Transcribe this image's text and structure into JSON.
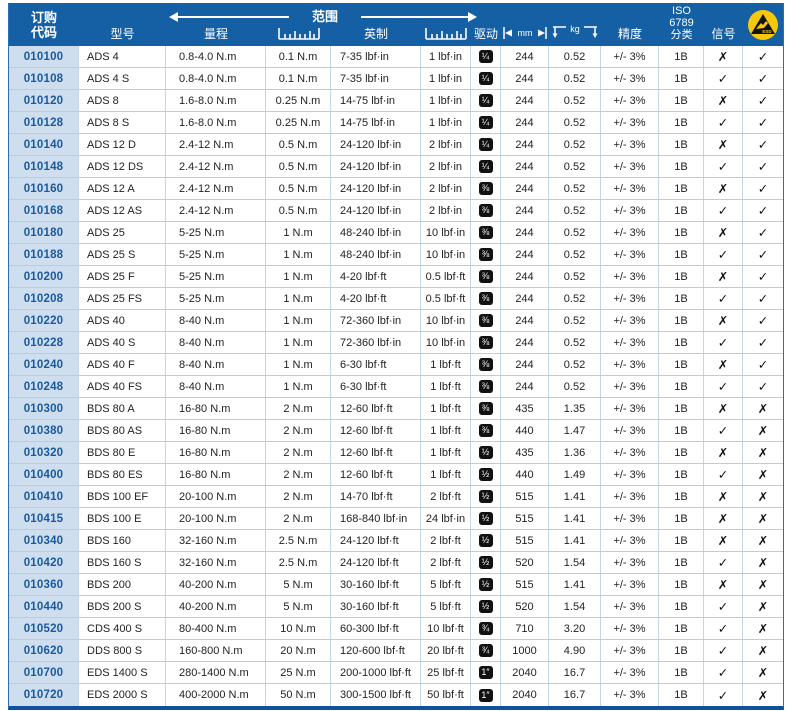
{
  "colors": {
    "header_bg": "#155fa5",
    "code_column_bg": "#cfdeef",
    "code_text": "#19599f",
    "grid_line": "#b7cde6",
    "bottom_border": "#11509b",
    "esd_yellow": "#f5c80a",
    "drive_chip_bg": "#111111",
    "body_text": "#222222"
  },
  "header": {
    "order_code_line1": "订购",
    "order_code_line2": "代码",
    "model": "型号",
    "range_group": "范围",
    "metric_range": "量程",
    "imperial": "英制",
    "drive": "驱动",
    "length_unit": "mm",
    "weight_unit": "kg",
    "accuracy": "精度",
    "iso_line1": "ISO 6789",
    "iso_line2": "分类",
    "signal": "信号",
    "esd_label": "ESD"
  },
  "marks": {
    "yes": "✓",
    "no": "✗"
  },
  "rows": [
    {
      "code": "010100",
      "model": "ADS 4",
      "range_metric": "0.8-4.0 N.m",
      "grad_metric": "0.1 N.m",
      "range_imperial": "7-35 lbf·in",
      "grad_imperial": "1 lbf·in",
      "drive": "¼",
      "length_mm": "244",
      "weight_kg": "0.52",
      "accuracy": "+/- 3%",
      "iso_class": "1B",
      "signal": "✗",
      "esd": "✓"
    },
    {
      "code": "010108",
      "model": "ADS 4 S",
      "range_metric": "0.8-4.0 N.m",
      "grad_metric": "0.1 N.m",
      "range_imperial": "7-35 lbf·in",
      "grad_imperial": "1 lbf·in",
      "drive": "¼",
      "length_mm": "244",
      "weight_kg": "0.52",
      "accuracy": "+/- 3%",
      "iso_class": "1B",
      "signal": "✓",
      "esd": "✓"
    },
    {
      "code": "010120",
      "model": "ADS 8",
      "range_metric": "1.6-8.0 N.m",
      "grad_metric": "0.25 N.m",
      "range_imperial": "14-75 lbf·in",
      "grad_imperial": "1 lbf·in",
      "drive": "¼",
      "length_mm": "244",
      "weight_kg": "0.52",
      "accuracy": "+/- 3%",
      "iso_class": "1B",
      "signal": "✗",
      "esd": "✓"
    },
    {
      "code": "010128",
      "model": "ADS 8 S",
      "range_metric": "1.6-8.0 N.m",
      "grad_metric": "0.25 N.m",
      "range_imperial": "14-75 lbf·in",
      "grad_imperial": "1 lbf·in",
      "drive": "¼",
      "length_mm": "244",
      "weight_kg": "0.52",
      "accuracy": "+/- 3%",
      "iso_class": "1B",
      "signal": "✓",
      "esd": "✓"
    },
    {
      "code": "010140",
      "model": "ADS 12 D",
      "range_metric": "2.4-12 N.m",
      "grad_metric": "0.5 N.m",
      "range_imperial": "24-120 lbf·in",
      "grad_imperial": "2 lbf·in",
      "drive": "¼",
      "length_mm": "244",
      "weight_kg": "0.52",
      "accuracy": "+/- 3%",
      "iso_class": "1B",
      "signal": "✗",
      "esd": "✓"
    },
    {
      "code": "010148",
      "model": "ADS 12 DS",
      "range_metric": "2.4-12 N.m",
      "grad_metric": "0.5 N.m",
      "range_imperial": "24-120 lbf·in",
      "grad_imperial": "2 lbf·in",
      "drive": "¼",
      "length_mm": "244",
      "weight_kg": "0.52",
      "accuracy": "+/- 3%",
      "iso_class": "1B",
      "signal": "✓",
      "esd": "✓"
    },
    {
      "code": "010160",
      "model": "ADS 12 A",
      "range_metric": "2.4-12 N.m",
      "grad_metric": "0.5 N.m",
      "range_imperial": "24-120 lbf·in",
      "grad_imperial": "2 lbf·in",
      "drive": "⅜",
      "length_mm": "244",
      "weight_kg": "0.52",
      "accuracy": "+/- 3%",
      "iso_class": "1B",
      "signal": "✗",
      "esd": "✓"
    },
    {
      "code": "010168",
      "model": "ADS 12 AS",
      "range_metric": "2.4-12 N.m",
      "grad_metric": "0.5 N.m",
      "range_imperial": "24-120 lbf·in",
      "grad_imperial": "2 lbf·in",
      "drive": "⅜",
      "length_mm": "244",
      "weight_kg": "0.52",
      "accuracy": "+/- 3%",
      "iso_class": "1B",
      "signal": "✓",
      "esd": "✓"
    },
    {
      "code": "010180",
      "model": "ADS 25",
      "range_metric": "5-25 N.m",
      "grad_metric": "1 N.m",
      "range_imperial": "48-240 lbf·in",
      "grad_imperial": "10 lbf·in",
      "drive": "⅜",
      "length_mm": "244",
      "weight_kg": "0.52",
      "accuracy": "+/- 3%",
      "iso_class": "1B",
      "signal": "✗",
      "esd": "✓"
    },
    {
      "code": "010188",
      "model": "ADS 25 S",
      "range_metric": "5-25 N.m",
      "grad_metric": "1 N.m",
      "range_imperial": "48-240 lbf·in",
      "grad_imperial": "10 lbf·in",
      "drive": "⅜",
      "length_mm": "244",
      "weight_kg": "0.52",
      "accuracy": "+/- 3%",
      "iso_class": "1B",
      "signal": "✓",
      "esd": "✓"
    },
    {
      "code": "010200",
      "model": "ADS 25 F",
      "range_metric": "5-25 N.m",
      "grad_metric": "1 N.m",
      "range_imperial": "4-20 lbf·ft",
      "grad_imperial": "0.5 lbf·ft",
      "drive": "⅜",
      "length_mm": "244",
      "weight_kg": "0.52",
      "accuracy": "+/- 3%",
      "iso_class": "1B",
      "signal": "✗",
      "esd": "✓"
    },
    {
      "code": "010208",
      "model": "ADS 25 FS",
      "range_metric": "5-25 N.m",
      "grad_metric": "1 N.m",
      "range_imperial": "4-20 lbf·ft",
      "grad_imperial": "0.5 lbf·ft",
      "drive": "⅜",
      "length_mm": "244",
      "weight_kg": "0.52",
      "accuracy": "+/- 3%",
      "iso_class": "1B",
      "signal": "✓",
      "esd": "✓"
    },
    {
      "code": "010220",
      "model": "ADS 40",
      "range_metric": "8-40 N.m",
      "grad_metric": "1 N.m",
      "range_imperial": "72-360 lbf·in",
      "grad_imperial": "10 lbf·in",
      "drive": "⅜",
      "length_mm": "244",
      "weight_kg": "0.52",
      "accuracy": "+/- 3%",
      "iso_class": "1B",
      "signal": "✗",
      "esd": "✓"
    },
    {
      "code": "010228",
      "model": "ADS 40 S",
      "range_metric": "8-40 N.m",
      "grad_metric": "1 N.m",
      "range_imperial": "72-360 lbf·in",
      "grad_imperial": "10 lbf·in",
      "drive": "⅜",
      "length_mm": "244",
      "weight_kg": "0.52",
      "accuracy": "+/- 3%",
      "iso_class": "1B",
      "signal": "✓",
      "esd": "✓"
    },
    {
      "code": "010240",
      "model": "ADS 40 F",
      "range_metric": "8-40 N.m",
      "grad_metric": "1 N.m",
      "range_imperial": "6-30 lbf·ft",
      "grad_imperial": "1 lbf·ft",
      "drive": "⅜",
      "length_mm": "244",
      "weight_kg": "0.52",
      "accuracy": "+/- 3%",
      "iso_class": "1B",
      "signal": "✗",
      "esd": "✓"
    },
    {
      "code": "010248",
      "model": "ADS 40 FS",
      "range_metric": "8-40 N.m",
      "grad_metric": "1 N.m",
      "range_imperial": "6-30 lbf·ft",
      "grad_imperial": "1 lbf·ft",
      "drive": "⅜",
      "length_mm": "244",
      "weight_kg": "0.52",
      "accuracy": "+/- 3%",
      "iso_class": "1B",
      "signal": "✓",
      "esd": "✓"
    },
    {
      "code": "010300",
      "model": "BDS 80 A",
      "range_metric": "16-80 N.m",
      "grad_metric": "2 N.m",
      "range_imperial": "12-60 lbf·ft",
      "grad_imperial": "1 lbf·ft",
      "drive": "⅜",
      "length_mm": "435",
      "weight_kg": "1.35",
      "accuracy": "+/- 3%",
      "iso_class": "1B",
      "signal": "✗",
      "esd": "✗"
    },
    {
      "code": "010380",
      "model": "BDS 80 AS",
      "range_metric": "16-80 N.m",
      "grad_metric": "2 N.m",
      "range_imperial": "12-60 lbf·ft",
      "grad_imperial": "1 lbf·ft",
      "drive": "⅜",
      "length_mm": "440",
      "weight_kg": "1.47",
      "accuracy": "+/- 3%",
      "iso_class": "1B",
      "signal": "✓",
      "esd": "✗"
    },
    {
      "code": "010320",
      "model": "BDS 80 E",
      "range_metric": "16-80 N.m",
      "grad_metric": "2 N.m",
      "range_imperial": "12-60 lbf·ft",
      "grad_imperial": "1 lbf·ft",
      "drive": "½",
      "length_mm": "435",
      "weight_kg": "1.36",
      "accuracy": "+/- 3%",
      "iso_class": "1B",
      "signal": "✗",
      "esd": "✗"
    },
    {
      "code": "010400",
      "model": "BDS 80 ES",
      "range_metric": "16-80 N.m",
      "grad_metric": "2 N.m",
      "range_imperial": "12-60 lbf·ft",
      "grad_imperial": "1 lbf·ft",
      "drive": "½",
      "length_mm": "440",
      "weight_kg": "1.49",
      "accuracy": "+/- 3%",
      "iso_class": "1B",
      "signal": "✓",
      "esd": "✗"
    },
    {
      "code": "010410",
      "model": "BDS 100 EF",
      "range_metric": "20-100 N.m",
      "grad_metric": "2 N.m",
      "range_imperial": "14-70 lbf·ft",
      "grad_imperial": "2 lbf·ft",
      "drive": "½",
      "length_mm": "515",
      "weight_kg": "1.41",
      "accuracy": "+/- 3%",
      "iso_class": "1B",
      "signal": "✗",
      "esd": "✗"
    },
    {
      "code": "010415",
      "model": "BDS 100 E",
      "range_metric": "20-100 N.m",
      "grad_metric": "2 N.m",
      "range_imperial": "168-840 lbf·in",
      "grad_imperial": "24 lbf·in",
      "drive": "½",
      "length_mm": "515",
      "weight_kg": "1.41",
      "accuracy": "+/- 3%",
      "iso_class": "1B",
      "signal": "✗",
      "esd": "✗"
    },
    {
      "code": "010340",
      "model": "BDS 160",
      "range_metric": "32-160 N.m",
      "grad_metric": "2.5 N.m",
      "range_imperial": "24-120 lbf·ft",
      "grad_imperial": "2 lbf·ft",
      "drive": "½",
      "length_mm": "515",
      "weight_kg": "1.41",
      "accuracy": "+/- 3%",
      "iso_class": "1B",
      "signal": "✗",
      "esd": "✗"
    },
    {
      "code": "010420",
      "model": "BDS 160 S",
      "range_metric": "32-160 N.m",
      "grad_metric": "2.5 N.m",
      "range_imperial": "24-120 lbf·ft",
      "grad_imperial": "2 lbf·ft",
      "drive": "½",
      "length_mm": "520",
      "weight_kg": "1.54",
      "accuracy": "+/- 3%",
      "iso_class": "1B",
      "signal": "✓",
      "esd": "✗"
    },
    {
      "code": "010360",
      "model": "BDS 200",
      "range_metric": "40-200 N.m",
      "grad_metric": "5 N.m",
      "range_imperial": "30-160 lbf·ft",
      "grad_imperial": "5 lbf·ft",
      "drive": "½",
      "length_mm": "515",
      "weight_kg": "1.41",
      "accuracy": "+/- 3%",
      "iso_class": "1B",
      "signal": "✗",
      "esd": "✗"
    },
    {
      "code": "010440",
      "model": "BDS 200 S",
      "range_metric": "40-200 N.m",
      "grad_metric": "5 N.m",
      "range_imperial": "30-160 lbf·ft",
      "grad_imperial": "5 lbf·ft",
      "drive": "½",
      "length_mm": "520",
      "weight_kg": "1.54",
      "accuracy": "+/- 3%",
      "iso_class": "1B",
      "signal": "✓",
      "esd": "✗"
    },
    {
      "code": "010520",
      "model": "CDS 400 S",
      "range_metric": "80-400 N.m",
      "grad_metric": "10 N.m",
      "range_imperial": "60-300 lbf·ft",
      "grad_imperial": "10 lbf·ft",
      "drive": "¾",
      "length_mm": "710",
      "weight_kg": "3.20",
      "accuracy": "+/- 3%",
      "iso_class": "1B",
      "signal": "✓",
      "esd": "✗"
    },
    {
      "code": "010620",
      "model": "DDS 800 S",
      "range_metric": "160-800 N.m",
      "grad_metric": "20 N.m",
      "range_imperial": "120-600 lbf·ft",
      "grad_imperial": "20 lbf·ft",
      "drive": "¾",
      "length_mm": "1000",
      "weight_kg": "4.90",
      "accuracy": "+/- 3%",
      "iso_class": "1B",
      "signal": "✓",
      "esd": "✗"
    },
    {
      "code": "010700",
      "model": "EDS 1400 S",
      "range_metric": "280-1400 N.m",
      "grad_metric": "25 N.m",
      "range_imperial": "200-1000 lbf·ft",
      "grad_imperial": "25 lbf·ft",
      "drive": "1″",
      "length_mm": "2040",
      "weight_kg": "16.7",
      "accuracy": "+/- 3%",
      "iso_class": "1B",
      "signal": "✓",
      "esd": "✗"
    },
    {
      "code": "010720",
      "model": "EDS 2000 S",
      "range_metric": "400-2000 N.m",
      "grad_metric": "50 N.m",
      "range_imperial": "300-1500 lbf·ft",
      "grad_imperial": "50 lbf·ft",
      "drive": "1″",
      "length_mm": "2040",
      "weight_kg": "16.7",
      "accuracy": "+/- 3%",
      "iso_class": "1B",
      "signal": "✓",
      "esd": "✗"
    }
  ]
}
